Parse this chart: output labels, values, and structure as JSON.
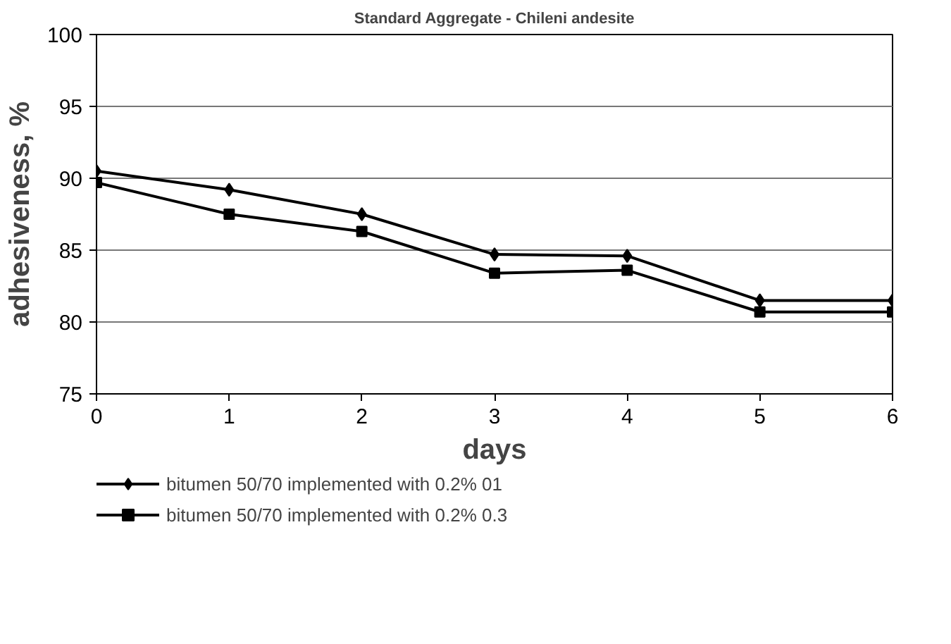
{
  "chart_data": {
    "type": "line",
    "title": "Standard Aggregate - Chileni andesite",
    "xlabel": "days",
    "ylabel": "adhesiveness, %",
    "x": [
      0,
      1,
      2,
      3,
      4,
      5,
      6
    ],
    "series": [
      {
        "name": "bitumen 50/70 implemented with 0.2% 01",
        "color": "#000000",
        "marker": "diamond",
        "values": [
          90.5,
          89.2,
          87.5,
          84.7,
          84.6,
          81.5,
          81.5
        ]
      },
      {
        "name": "bitumen 50/70 implemented with 0.2% 0.3",
        "color": "#000000",
        "marker": "square",
        "values": [
          89.7,
          87.5,
          86.3,
          83.4,
          83.6,
          80.7,
          80.7
        ]
      }
    ],
    "xlim": [
      0,
      6
    ],
    "xticks": [
      0,
      1,
      2,
      3,
      4,
      5,
      6
    ],
    "ylim": [
      75,
      100
    ],
    "yticks": [
      75,
      80,
      85,
      90,
      95,
      100
    ],
    "grid": "y",
    "legend": "bottom",
    "line_style": "solid"
  }
}
